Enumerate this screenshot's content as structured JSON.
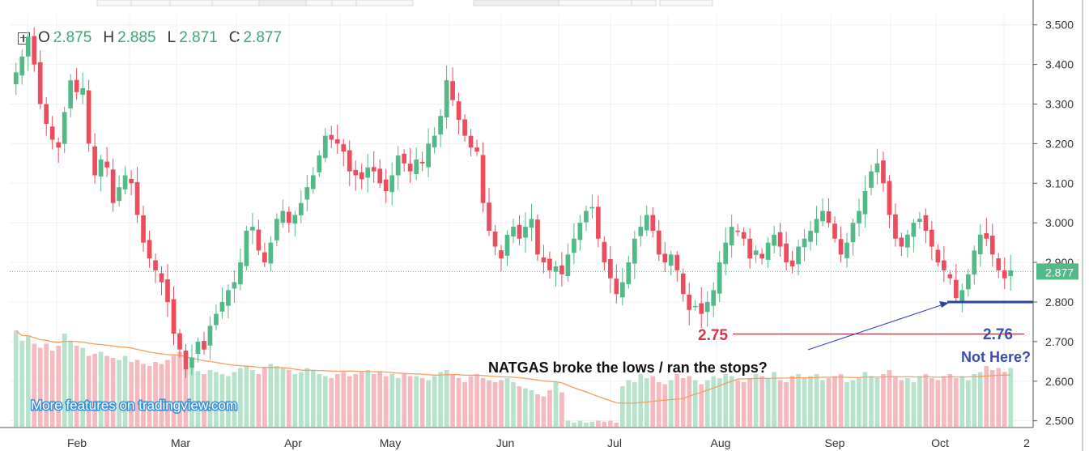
{
  "ohlc": {
    "o_label": "O",
    "o_value": "2.875",
    "h_label": "H",
    "h_value": "2.885",
    "l_label": "L",
    "l_value": "2.871",
    "c_label": "C",
    "c_value": "2.877"
  },
  "watermark": "More features on tradingview.com",
  "colors": {
    "up": "#53b987",
    "down": "#eb4d5c",
    "vol_up": "#b7e3cc",
    "vol_down": "#f5b9c0",
    "ma": "#f0a060",
    "price_tag": "#53b987",
    "support": "#b22222",
    "arrow": "#2f3fa8"
  },
  "chart_data": {
    "type": "candlestick",
    "instrument": "NATGAS",
    "y_axis_ticks": [
      "3.500",
      "3.400",
      "3.300",
      "3.200",
      "3.100",
      "3.000",
      "2.900",
      "2.800",
      "2.700",
      "2.600",
      "2.500"
    ],
    "ylim": [
      2.483,
      3.526
    ],
    "x_axis_labels": [
      "Feb",
      "Mar",
      "Apr",
      "May",
      "Jun",
      "Jul",
      "Aug",
      "Sep",
      "Oct",
      "2"
    ],
    "last_price": "2.877",
    "support_level": 2.76,
    "series": [
      {
        "name": "price",
        "values": [
          3.38,
          3.42,
          3.47,
          3.4,
          3.3,
          3.25,
          3.21,
          3.19,
          3.28,
          3.36,
          3.33,
          3.34,
          3.2,
          3.12,
          3.16,
          3.14,
          3.05,
          3.09,
          3.12,
          3.1,
          3.02,
          2.95,
          2.91,
          2.88,
          2.85,
          2.8,
          2.72,
          2.68,
          2.63,
          2.66,
          2.7,
          2.68,
          2.74,
          2.77,
          2.8,
          2.83,
          2.85,
          2.9,
          2.98,
          2.99,
          2.93,
          2.9,
          2.95,
          3.01,
          3.03,
          3.0,
          3.02,
          3.05,
          3.09,
          3.12,
          3.17,
          3.22,
          3.21,
          3.2,
          3.18,
          3.13,
          3.12,
          3.11,
          3.14,
          3.13,
          3.1,
          3.08,
          3.12,
          3.17,
          3.15,
          3.13,
          3.16,
          3.15,
          3.2,
          3.22,
          3.27,
          3.36,
          3.31,
          3.26,
          3.22,
          3.19,
          3.18,
          3.05,
          2.98,
          2.94,
          2.91,
          2.97,
          2.99,
          2.96,
          2.99,
          3.01,
          2.92,
          2.9,
          2.88,
          2.89,
          2.87,
          2.92,
          2.96,
          3.0,
          3.03,
          3.04,
          2.96,
          2.9,
          2.86,
          2.82,
          2.85,
          2.9,
          2.96,
          2.99,
          3.02,
          2.98,
          2.92,
          2.9,
          2.92,
          2.88,
          2.82,
          2.78,
          2.79,
          2.77,
          2.8,
          2.83,
          2.9,
          2.95,
          2.99,
          2.98,
          2.96,
          2.91,
          2.93,
          2.91,
          2.95,
          2.97,
          2.94,
          2.9,
          2.89,
          2.94,
          2.96,
          2.98,
          3.01,
          3.03,
          3.0,
          2.96,
          2.92,
          2.95,
          3.0,
          3.03,
          3.08,
          3.13,
          3.15,
          3.1,
          3.02,
          2.96,
          2.94,
          2.97,
          3.0,
          3.01,
          2.98,
          2.94,
          2.9,
          2.88,
          2.86,
          2.81,
          2.83,
          2.87,
          2.93,
          2.97,
          2.96,
          2.92,
          2.88,
          2.86,
          2.88
        ]
      },
      {
        "name": "volume",
        "values": [
          0.95,
          0.85,
          0.9,
          0.82,
          0.78,
          0.82,
          0.75,
          0.8,
          0.92,
          0.85,
          0.8,
          0.78,
          0.7,
          0.72,
          0.74,
          0.7,
          0.68,
          0.66,
          0.7,
          0.64,
          0.66,
          0.62,
          0.6,
          0.64,
          0.62,
          0.66,
          0.7,
          0.74,
          0.6,
          0.58,
          0.55,
          0.52,
          0.56,
          0.54,
          0.52,
          0.5,
          0.54,
          0.58,
          0.6,
          0.56,
          0.52,
          0.58,
          0.62,
          0.6,
          0.58,
          0.56,
          0.52,
          0.54,
          0.58,
          0.56,
          0.52,
          0.5,
          0.48,
          0.52,
          0.54,
          0.5,
          0.52,
          0.54,
          0.56,
          0.52,
          0.54,
          0.5,
          0.52,
          0.48,
          0.52,
          0.5,
          0.5,
          0.48,
          0.46,
          0.5,
          0.54,
          0.56,
          0.52,
          0.48,
          0.44,
          0.5,
          0.52,
          0.48,
          0.46,
          0.44,
          0.46,
          0.48,
          0.44,
          0.4,
          0.38,
          0.36,
          0.32,
          0.3,
          0.36,
          0.44,
          0.34,
          0.06,
          0.04,
          0.06,
          0.04,
          0.05,
          0.06,
          0.05,
          0.06,
          0.04,
          0.4,
          0.46,
          0.44,
          0.52,
          0.48,
          0.5,
          0.44,
          0.42,
          0.46,
          0.52,
          0.48,
          0.5,
          0.46,
          0.42,
          0.46,
          0.5,
          0.48,
          0.52,
          0.5,
          0.46,
          0.44,
          0.48,
          0.52,
          0.5,
          0.48,
          0.54,
          0.46,
          0.44,
          0.5,
          0.52,
          0.48,
          0.5,
          0.52,
          0.46,
          0.48,
          0.5,
          0.52,
          0.44,
          0.46,
          0.48,
          0.54,
          0.5,
          0.48,
          0.52,
          0.56,
          0.5,
          0.46,
          0.48,
          0.44,
          0.5,
          0.52,
          0.48,
          0.46,
          0.5,
          0.52,
          0.48,
          0.5,
          0.46,
          0.52,
          0.54,
          0.6,
          0.56,
          0.58,
          0.54,
          0.58,
          0.5
        ]
      }
    ],
    "moving_average": "orange line on volume pane",
    "annotations": [
      {
        "text": "2.75",
        "color": "#d63344"
      },
      {
        "text": "2.76",
        "color": "#3a4cb3"
      },
      {
        "text": "Not Here?",
        "color": "#3a4cb3"
      },
      {
        "text": "NATGAS broke the lows /  ran the stops?",
        "color": "#111111"
      }
    ]
  }
}
